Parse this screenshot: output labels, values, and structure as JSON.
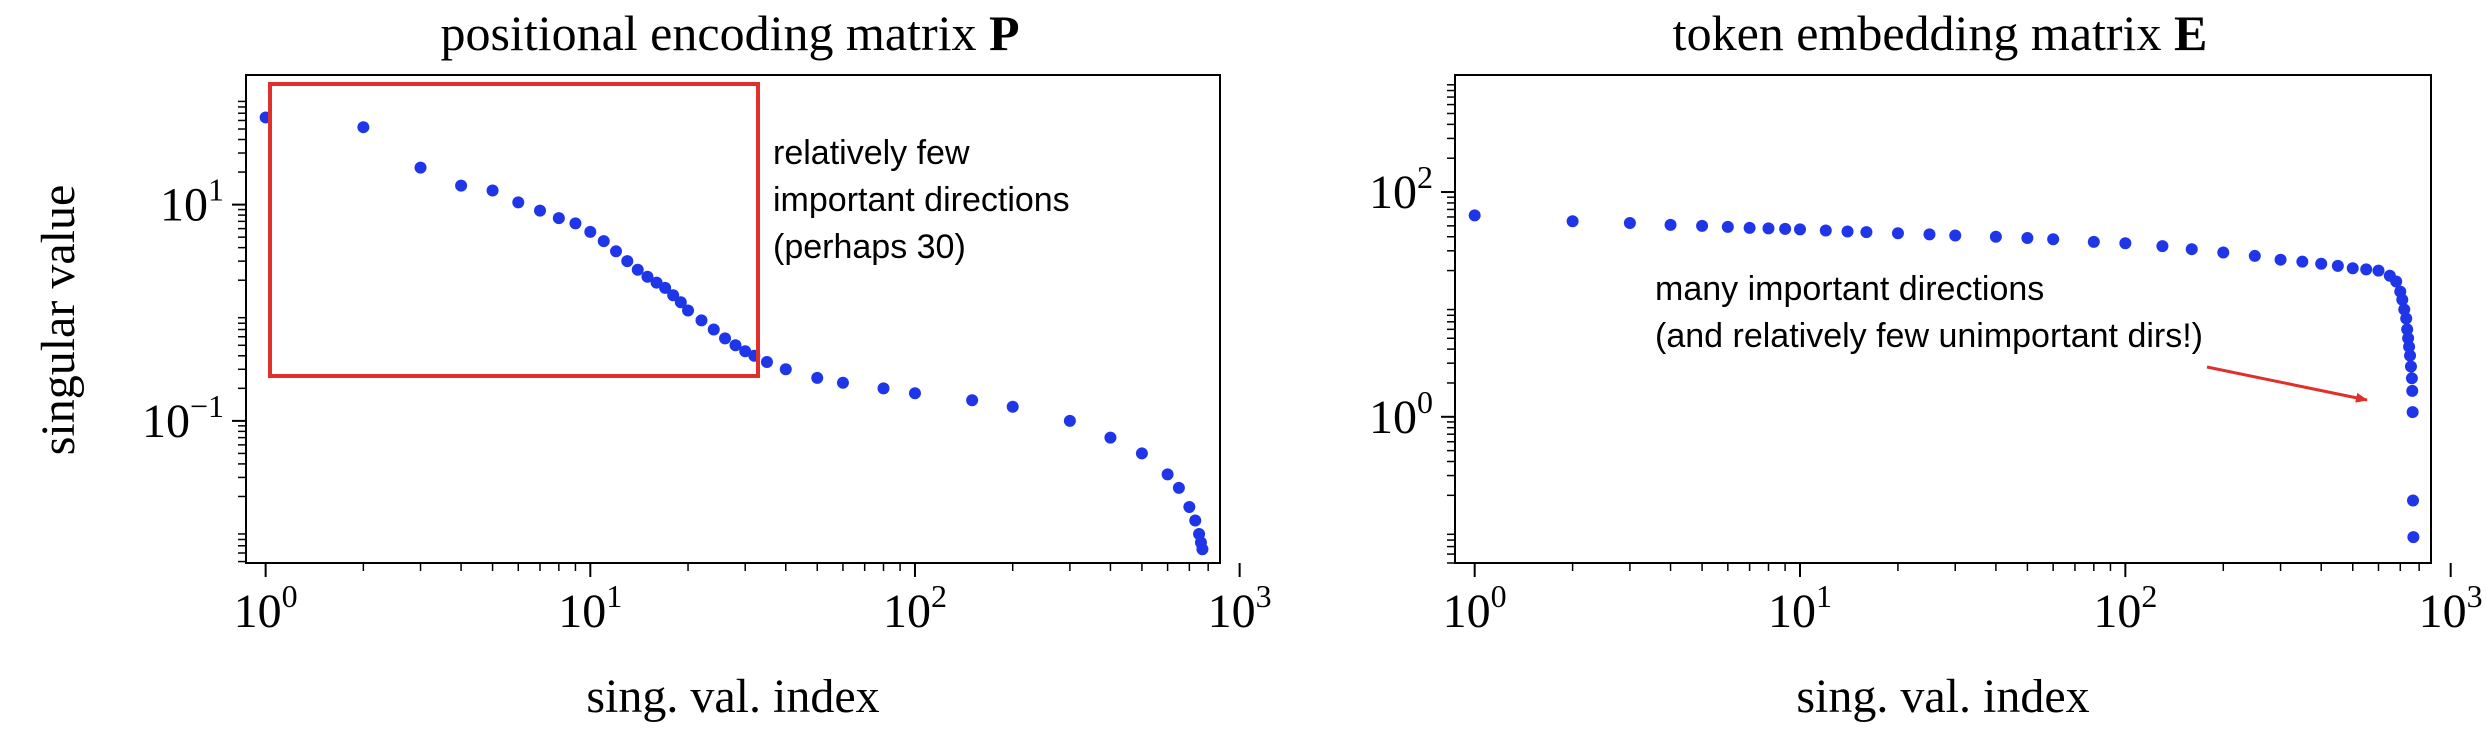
{
  "colors": {
    "points": "#1f35e8",
    "annotation": "#e0302a",
    "axis": "#000000"
  },
  "chart_data": [
    {
      "type": "scatter",
      "title": "positional encoding matrix ",
      "title_bold": "P",
      "xlabel": "sing. val. index",
      "ylabel": "singular value",
      "xscale": "log",
      "yscale": "log",
      "xlim": [
        0.87,
        870
      ],
      "ylim": [
        0.00485,
        158
      ],
      "xticks": [
        {
          "value": 1,
          "base": "10",
          "exp": "0"
        },
        {
          "value": 10,
          "base": "10",
          "exp": "1"
        },
        {
          "value": 100,
          "base": "10",
          "exp": "2"
        },
        {
          "value": 1000,
          "base": "10",
          "exp": "3"
        }
      ],
      "yticks": [
        {
          "value": 10,
          "base": "10",
          "exp": "1"
        },
        {
          "value": 0.1,
          "base": "10",
          "exp": "−1"
        }
      ],
      "x": [
        1,
        2,
        3,
        4,
        5,
        6,
        7,
        8,
        9,
        10,
        11,
        12,
        13,
        14,
        15,
        16,
        17,
        18,
        19,
        20,
        22,
        24,
        26,
        28,
        30,
        32,
        35,
        40,
        50,
        60,
        80,
        100,
        150,
        200,
        300,
        400,
        500,
        600,
        650,
        700,
        730,
        750,
        760,
        768
      ],
      "y": [
        64,
        52,
        22,
        15,
        13.5,
        10.5,
        8.8,
        7.5,
        6.7,
        5.6,
        4.6,
        3.7,
        3.0,
        2.5,
        2.15,
        1.9,
        1.7,
        1.45,
        1.25,
        1.05,
        0.85,
        0.7,
        0.58,
        0.5,
        0.44,
        0.4,
        0.35,
        0.3,
        0.25,
        0.225,
        0.2,
        0.18,
        0.155,
        0.135,
        0.1,
        0.07,
        0.05,
        0.032,
        0.024,
        0.016,
        0.012,
        0.009,
        0.0075,
        0.0065
      ],
      "annotations": {
        "lines": [
          "relatively few",
          "important directions",
          "(perhaps 30)"
        ]
      }
    },
    {
      "type": "scatter",
      "title": "token embedding matrix ",
      "title_bold": "E",
      "xlabel": "sing. val. index",
      "ylabel": "",
      "xscale": "log",
      "yscale": "log",
      "xlim": [
        0.87,
        870
      ],
      "ylim": [
        0.05,
        1100
      ],
      "xticks": [
        {
          "value": 1,
          "base": "10",
          "exp": "0"
        },
        {
          "value": 10,
          "base": "10",
          "exp": "1"
        },
        {
          "value": 100,
          "base": "10",
          "exp": "2"
        },
        {
          "value": 1000,
          "base": "10",
          "exp": "3"
        }
      ],
      "yticks": [
        {
          "value": 100,
          "base": "10",
          "exp": "2"
        },
        {
          "value": 1,
          "base": "10",
          "exp": "0"
        }
      ],
      "x": [
        1,
        2,
        3,
        4,
        5,
        6,
        7,
        8,
        9,
        10,
        12,
        14,
        16,
        20,
        25,
        30,
        40,
        50,
        60,
        80,
        100,
        130,
        160,
        200,
        250,
        300,
        350,
        400,
        450,
        500,
        550,
        600,
        650,
        680,
        700,
        710,
        720,
        730,
        735,
        740,
        745,
        750,
        755,
        760,
        762,
        764,
        766,
        768
      ],
      "y": [
        62,
        55,
        53,
        51,
        50,
        49,
        48,
        47.5,
        47,
        46.5,
        45.5,
        44.5,
        44,
        43,
        42,
        41,
        40,
        39,
        38,
        36,
        35,
        33,
        31,
        29,
        27,
        25,
        24,
        23,
        22,
        21,
        20.5,
        20,
        18,
        16,
        13,
        11,
        9,
        7.5,
        6,
        5,
        4.2,
        3.5,
        2.8,
        2.2,
        1.7,
        1.1,
        0.18,
        0.085
      ],
      "annotations": {
        "lines": [
          "many important directions",
          "(and relatively few unimportant dirs!)"
        ]
      }
    }
  ]
}
